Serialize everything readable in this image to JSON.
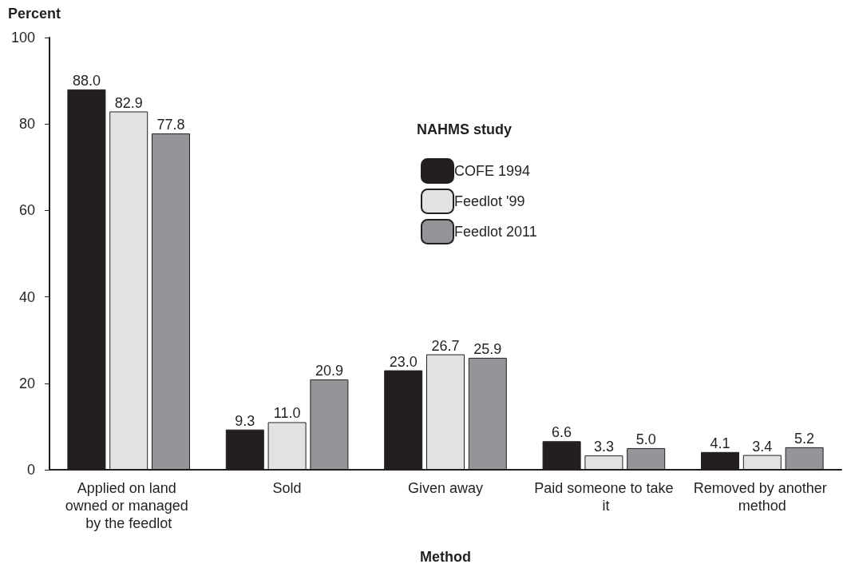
{
  "chart_data": {
    "type": "bar",
    "ylabel": "Percent",
    "xlabel": "Method",
    "legend_title": "NAHMS study",
    "legend": "top",
    "categories": [
      "Applied on land owned or managed by the feedlot",
      "Sold",
      "Given away",
      "Paid someone to take it",
      "Removed by another method"
    ],
    "series": [
      {
        "name": "COFE 1994",
        "color": "#231f20",
        "values": [
          88.0,
          9.3,
          23.0,
          6.6,
          4.1
        ],
        "value_labels": [
          "88.0",
          "9.3",
          "23.0",
          "6.6",
          "4.1"
        ]
      },
      {
        "name": "Feedlot '99",
        "color": "#e1e2e3",
        "values": [
          82.9,
          11.0,
          26.7,
          3.3,
          3.4
        ],
        "value_labels": [
          "82.9",
          "11.0",
          "26.7",
          "3.3",
          "3.4"
        ]
      },
      {
        "name": "Feedlot 2011",
        "color": "#939598",
        "values": [
          77.8,
          20.9,
          25.9,
          5.0,
          5.2
        ],
        "value_labels": [
          "77.8",
          "20.9",
          "25.9",
          "5.0",
          "5.2"
        ]
      }
    ],
    "ylim": [
      0,
      100
    ],
    "yticks": [
      0,
      20,
      40,
      60,
      80,
      100
    ],
    "grid": false
  }
}
